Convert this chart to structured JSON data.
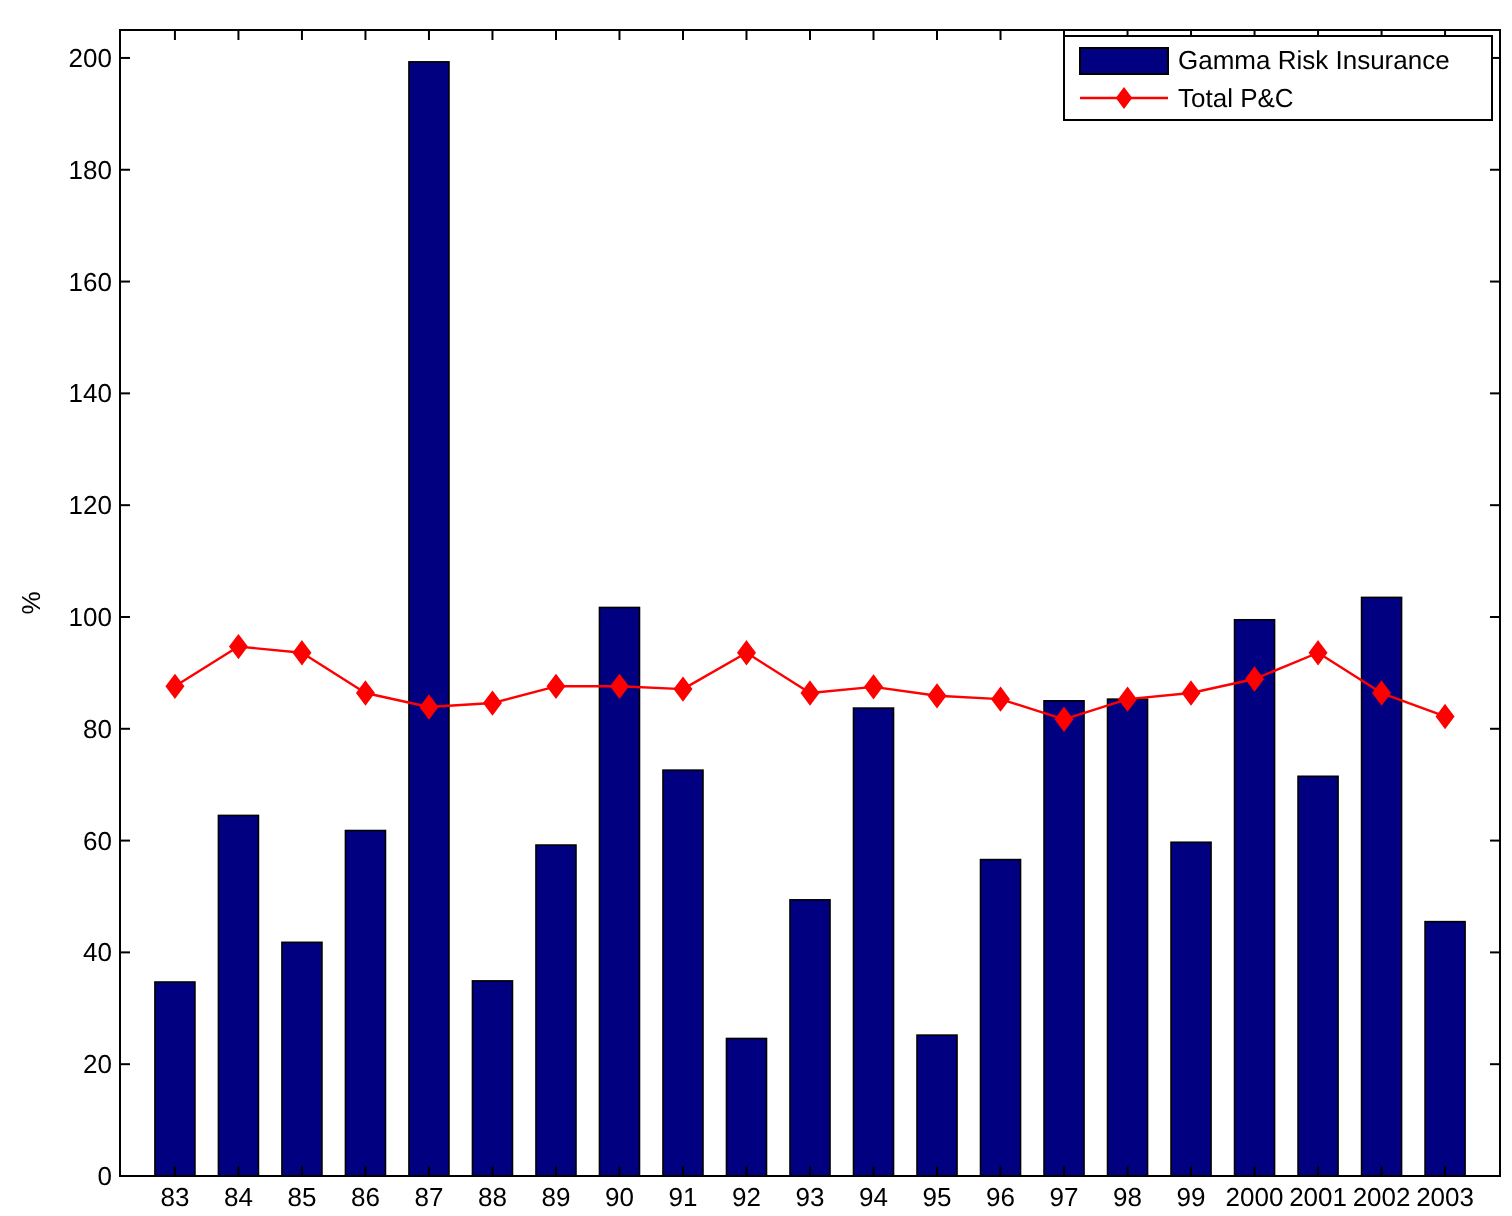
{
  "chart_data": {
    "type": "bar",
    "ylabel": "%",
    "categories": [
      "83",
      "84",
      "85",
      "86",
      "87",
      "88",
      "89",
      "90",
      "91",
      "92",
      "93",
      "94",
      "95",
      "96",
      "97",
      "98",
      "99",
      "2000",
      "2001",
      "2002",
      "2003"
    ],
    "series": [
      {
        "name": "Gamma Risk Insurance",
        "color": "#000080",
        "values": [
          34.7,
          64.5,
          41.8,
          61.8,
          199.3,
          34.9,
          59.2,
          101.7,
          72.6,
          24.6,
          49.4,
          83.7,
          25.2,
          56.6,
          85.0,
          85.3,
          59.7,
          99.5,
          71.5,
          103.5,
          45.5
        ]
      },
      {
        "name": "Total P&C",
        "type": "line",
        "color": "#ff0000",
        "marker": "diamond",
        "values": [
          87.6,
          94.7,
          93.6,
          86.4,
          83.9,
          84.6,
          87.6,
          87.6,
          87.1,
          93.6,
          86.4,
          87.5,
          85.9,
          85.3,
          81.7,
          85.3,
          86.4,
          88.9,
          93.6,
          86.4,
          82.2
        ]
      }
    ],
    "ylim": [
      0,
      205
    ],
    "yticks": [
      0,
      20,
      40,
      60,
      80,
      100,
      120,
      140,
      160,
      180,
      200
    ],
    "grid": false,
    "legend": "top right"
  }
}
